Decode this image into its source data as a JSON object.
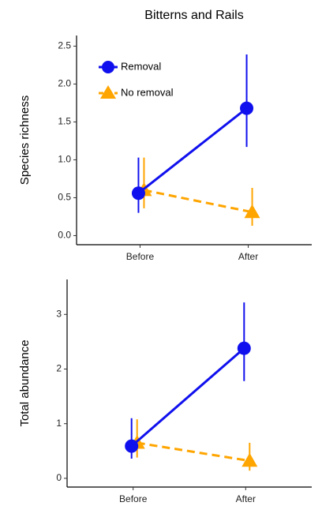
{
  "chart_data": [
    {
      "type": "line",
      "title": "Bitterns and Rails",
      "y_label": "Species richness",
      "categories": [
        "Before",
        "After"
      ],
      "ylim": [
        -0.12,
        2.64
      ],
      "yticks": [
        {
          "value": 0,
          "label": "0.0"
        },
        0.5,
        {
          "value": 1,
          "label": "1.0"
        },
        1.5,
        {
          "value": 2,
          "label": "2.0"
        },
        2.5
      ],
      "legend": "top-left",
      "series": [
        {
          "name": "Removal",
          "color": "#1010ee",
          "marker": "circle",
          "line_style": "solid",
          "values": [
            0.56,
            1.68
          ],
          "lower": [
            0.3,
            1.17
          ],
          "upper": [
            1.03,
            2.39
          ]
        },
        {
          "name": "No removal",
          "color": "#ffa500",
          "marker": "triangle",
          "line_style": "dashed",
          "values": [
            0.6,
            0.31
          ],
          "lower": [
            0.36,
            0.13
          ],
          "upper": [
            1.03,
            0.63
          ]
        }
      ]
    },
    {
      "type": "line",
      "y_label": "Total abundance",
      "categories": [
        "Before",
        "After"
      ],
      "ylim": [
        -0.16,
        3.64
      ],
      "yticks": [
        0,
        1,
        2,
        3
      ],
      "series": [
        {
          "color": "#1010ee",
          "marker": "circle",
          "line_style": "solid",
          "values": [
            0.59,
            2.38
          ],
          "lower": [
            0.36,
            1.78
          ],
          "upper": [
            1.1,
            3.22
          ]
        },
        {
          "color": "#ffa500",
          "marker": "triangle",
          "line_style": "dashed",
          "values": [
            0.65,
            0.32
          ],
          "lower": [
            0.38,
            0.14
          ],
          "upper": [
            1.08,
            0.65
          ]
        }
      ]
    }
  ]
}
